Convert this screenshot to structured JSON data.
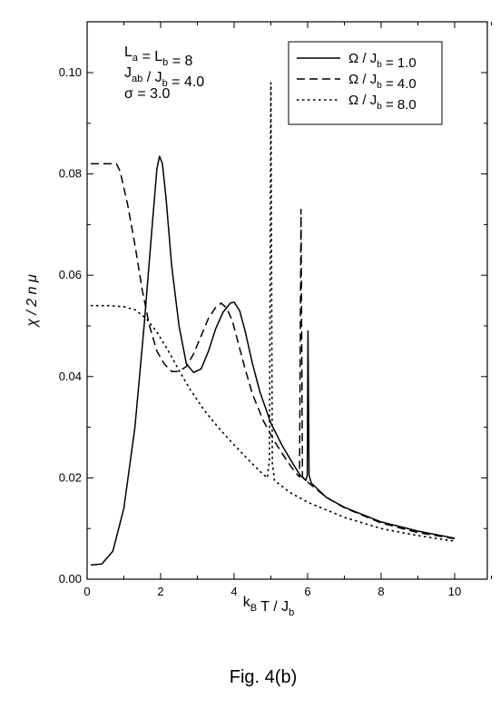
{
  "chart_data": {
    "type": "line",
    "xlabel": {
      "main1": "k",
      "sub1": "B",
      "main2": " T / J",
      "sub2": "b"
    },
    "ylabel": "χ / 2 n μ",
    "xlim": [
      0,
      11
    ],
    "ylim": [
      0,
      0.11
    ],
    "x_ticks": [
      0,
      2,
      4,
      6,
      8,
      10
    ],
    "x_tick_labels": [
      "0",
      "2",
      "4",
      "6",
      "8",
      "10"
    ],
    "y_ticks": [
      0.0,
      0.02,
      0.04,
      0.06,
      0.08,
      0.1
    ],
    "y_tick_labels": [
      "0.00",
      "0.02",
      "0.04",
      "0.06",
      "0.08",
      "0.10"
    ],
    "grid": false,
    "legend_position": "top-right",
    "annotations": [
      {
        "line": 1,
        "parts": [
          [
            "L",
            "a"
          ],
          [
            " = L",
            "b"
          ],
          [
            " = 8",
            ""
          ]
        ]
      },
      {
        "line": 2,
        "parts": [
          [
            "J",
            "ab"
          ],
          [
            " / J",
            "b"
          ],
          [
            " = 4.0",
            ""
          ]
        ]
      },
      {
        "line": 3,
        "parts": [
          [
            "σ = 3.0",
            ""
          ]
        ]
      }
    ],
    "series": [
      {
        "legend_parts": [
          [
            "Ω / J",
            "b"
          ],
          [
            " = 1.0",
            ""
          ]
        ],
        "style": "solid",
        "points": [
          [
            0.1,
            0.0028
          ],
          [
            0.4,
            0.003
          ],
          [
            0.7,
            0.0055
          ],
          [
            1.0,
            0.014
          ],
          [
            1.3,
            0.03
          ],
          [
            1.55,
            0.05
          ],
          [
            1.75,
            0.068
          ],
          [
            1.9,
            0.081
          ],
          [
            1.97,
            0.0835
          ],
          [
            2.05,
            0.082
          ],
          [
            2.15,
            0.075
          ],
          [
            2.3,
            0.062
          ],
          [
            2.5,
            0.05
          ],
          [
            2.7,
            0.0425
          ],
          [
            2.9,
            0.0408
          ],
          [
            3.1,
            0.0415
          ],
          [
            3.3,
            0.045
          ],
          [
            3.5,
            0.0495
          ],
          [
            3.7,
            0.0527
          ],
          [
            3.9,
            0.0545
          ],
          [
            4.0,
            0.0547
          ],
          [
            4.15,
            0.053
          ],
          [
            4.3,
            0.049
          ],
          [
            4.5,
            0.0425
          ],
          [
            4.7,
            0.037
          ],
          [
            5.0,
            0.0308
          ],
          [
            5.3,
            0.0265
          ],
          [
            5.6,
            0.0228
          ],
          [
            5.8,
            0.0205
          ],
          [
            5.95,
            0.0195
          ],
          [
            5.99,
            0.0205
          ],
          [
            6.01,
            0.049
          ],
          [
            6.04,
            0.0205
          ],
          [
            6.1,
            0.019
          ],
          [
            6.5,
            0.0162
          ],
          [
            7.0,
            0.0142
          ],
          [
            8.0,
            0.0113
          ],
          [
            9.0,
            0.0095
          ],
          [
            10.0,
            0.0081
          ]
        ]
      },
      {
        "legend_parts": [
          [
            "Ω / J",
            "b"
          ],
          [
            " = 4.0",
            ""
          ]
        ],
        "style": "dashed",
        "points": [
          [
            0.1,
            0.082
          ],
          [
            0.8,
            0.082
          ],
          [
            0.9,
            0.0805
          ],
          [
            1.1,
            0.074
          ],
          [
            1.3,
            0.066
          ],
          [
            1.5,
            0.057
          ],
          [
            1.7,
            0.05
          ],
          [
            1.9,
            0.045
          ],
          [
            2.1,
            0.0425
          ],
          [
            2.3,
            0.041
          ],
          [
            2.5,
            0.041
          ],
          [
            2.7,
            0.042
          ],
          [
            2.9,
            0.0445
          ],
          [
            3.1,
            0.048
          ],
          [
            3.3,
            0.0515
          ],
          [
            3.5,
            0.0537
          ],
          [
            3.65,
            0.0545
          ],
          [
            3.8,
            0.0535
          ],
          [
            3.95,
            0.051
          ],
          [
            4.1,
            0.047
          ],
          [
            4.3,
            0.0415
          ],
          [
            4.5,
            0.0365
          ],
          [
            4.8,
            0.0312
          ],
          [
            5.1,
            0.0272
          ],
          [
            5.4,
            0.0238
          ],
          [
            5.65,
            0.0212
          ],
          [
            5.78,
            0.0202
          ],
          [
            5.82,
            0.073
          ],
          [
            5.86,
            0.0202
          ],
          [
            6.0,
            0.0192
          ],
          [
            6.5,
            0.0162
          ],
          [
            7.0,
            0.0141
          ],
          [
            8.0,
            0.0111
          ],
          [
            9.0,
            0.0092
          ],
          [
            10.0,
            0.008
          ]
        ]
      },
      {
        "legend_parts": [
          [
            "Ω / J",
            "b"
          ],
          [
            " = 8.0",
            ""
          ]
        ],
        "style": "dotted",
        "points": [
          [
            0.1,
            0.054
          ],
          [
            0.6,
            0.054
          ],
          [
            1.0,
            0.0538
          ],
          [
            1.3,
            0.0532
          ],
          [
            1.6,
            0.0515
          ],
          [
            1.9,
            0.0488
          ],
          [
            2.2,
            0.0452
          ],
          [
            2.5,
            0.0412
          ],
          [
            2.8,
            0.0375
          ],
          [
            3.2,
            0.0332
          ],
          [
            3.6,
            0.0297
          ],
          [
            4.0,
            0.0265
          ],
          [
            4.4,
            0.0235
          ],
          [
            4.7,
            0.0213
          ],
          [
            4.9,
            0.02
          ],
          [
            4.96,
            0.0235
          ],
          [
            5.0,
            0.098
          ],
          [
            5.04,
            0.023
          ],
          [
            5.1,
            0.0195
          ],
          [
            5.5,
            0.0172
          ],
          [
            6.0,
            0.0152
          ],
          [
            7.0,
            0.0122
          ],
          [
            8.0,
            0.01
          ],
          [
            9.0,
            0.0086
          ],
          [
            10.0,
            0.0075
          ]
        ]
      }
    ]
  },
  "caption": "Fig. 4(b)"
}
